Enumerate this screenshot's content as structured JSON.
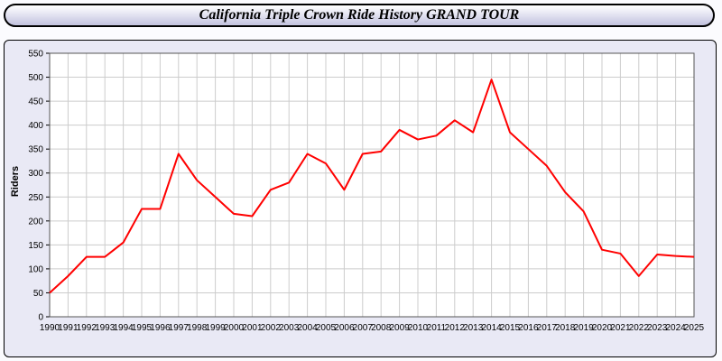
{
  "window": {
    "title": "California Triple Crown Ride History GRAND TOUR"
  },
  "chart_data": {
    "type": "line",
    "title": "California Triple Crown Ride History GRAND TOUR",
    "xlabel": "",
    "ylabel": "Riders",
    "x": [
      1990,
      1991,
      1992,
      1993,
      1994,
      1995,
      1996,
      1997,
      1998,
      1999,
      2000,
      2001,
      2002,
      2003,
      2004,
      2005,
      2006,
      2007,
      2008,
      2009,
      2010,
      2011,
      2012,
      2013,
      2014,
      2015,
      2016,
      2017,
      2018,
      2019,
      2020,
      2021,
      2022,
      2023,
      2024,
      2025
    ],
    "series": [
      {
        "name": "Riders",
        "color": "#ff0000",
        "values": [
          50,
          85,
          125,
          125,
          155,
          225,
          225,
          340,
          285,
          250,
          215,
          210,
          265,
          280,
          340,
          320,
          265,
          340,
          345,
          390,
          370,
          378,
          410,
          385,
          495,
          385,
          350,
          315,
          260,
          220,
          140,
          132,
          85,
          130,
          127,
          125
        ]
      }
    ],
    "ylim": [
      0,
      550
    ],
    "yticks": [
      0,
      50,
      100,
      150,
      200,
      250,
      300,
      350,
      400,
      450,
      500,
      550
    ],
    "grid": true,
    "legend_position": "none",
    "colors": {
      "plot_background": "#ffffff",
      "panel_background": "#e9e9f5",
      "grid_line": "#cccccc",
      "plot_border": "#555555",
      "tick_text": "#000000"
    }
  }
}
